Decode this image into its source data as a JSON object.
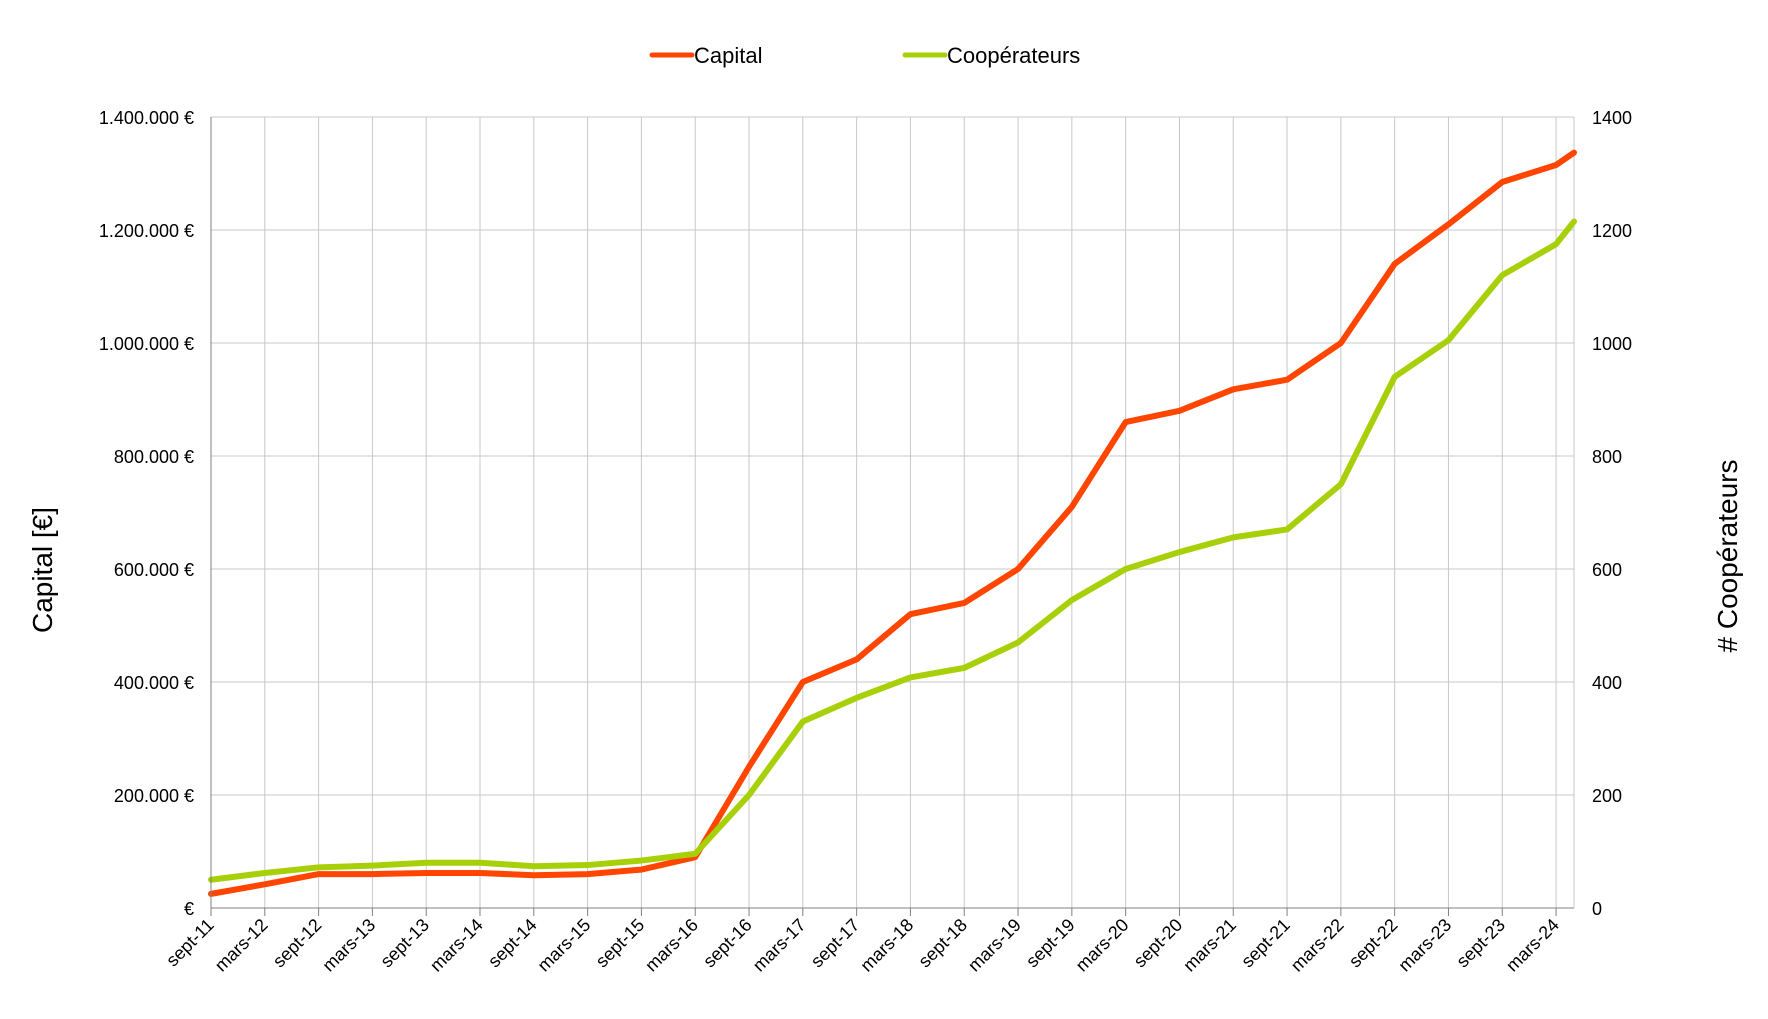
{
  "chart_data": {
    "type": "line",
    "x": [
      "sept-11",
      "mars-12",
      "sept-12",
      "mars-13",
      "sept-13",
      "mars-14",
      "sept-14",
      "mars-15",
      "sept-15",
      "mars-16",
      "sept-16",
      "mars-17",
      "sept-17",
      "mars-18",
      "sept-18",
      "mars-19",
      "sept-19",
      "mars-20",
      "sept-20",
      "mars-21",
      "sept-21",
      "mars-22",
      "sept-22",
      "mars-23",
      "sept-23",
      "mars-24"
    ],
    "series": [
      {
        "name": "Capital",
        "axis": "left",
        "color": "#ff4500",
        "values": [
          25000,
          42000,
          60000,
          60000,
          62000,
          62000,
          58000,
          60000,
          68000,
          90000,
          250000,
          400000,
          440000,
          520000,
          540000,
          600000,
          710000,
          860000,
          880000,
          918000,
          935000,
          1000000,
          1140000,
          1210000,
          1285000,
          1315000
        ],
        "end_value": 1337000
      },
      {
        "name": "Coopérateurs",
        "axis": "right",
        "color": "#a8d008",
        "values": [
          50,
          62,
          72,
          75,
          80,
          80,
          74,
          76,
          84,
          96,
          200,
          330,
          372,
          408,
          425,
          470,
          545,
          600,
          630,
          656,
          670,
          750,
          940,
          1005,
          1120,
          1175
        ],
        "end_value": 1215
      }
    ],
    "ylabel_left": "Capital [€]",
    "ylabel_right": "# Coopérateurs",
    "y_left_ticks": [
      "€",
      "200.000 €",
      "400.000 €",
      "600.000 €",
      "800.000 €",
      "1.000.000 €",
      "1.200.000 €",
      "1.400.000 €"
    ],
    "y_right_ticks": [
      "0",
      "200",
      "400",
      "600",
      "800",
      "1000",
      "1200",
      "1400"
    ],
    "ylim_left": [
      0,
      1400000
    ],
    "ylim_right": [
      0,
      1400
    ],
    "grid": true,
    "legend_position": "top-center"
  },
  "legend": {
    "capital_label": "Capital",
    "cooperateurs_label": "Coopérateurs"
  }
}
